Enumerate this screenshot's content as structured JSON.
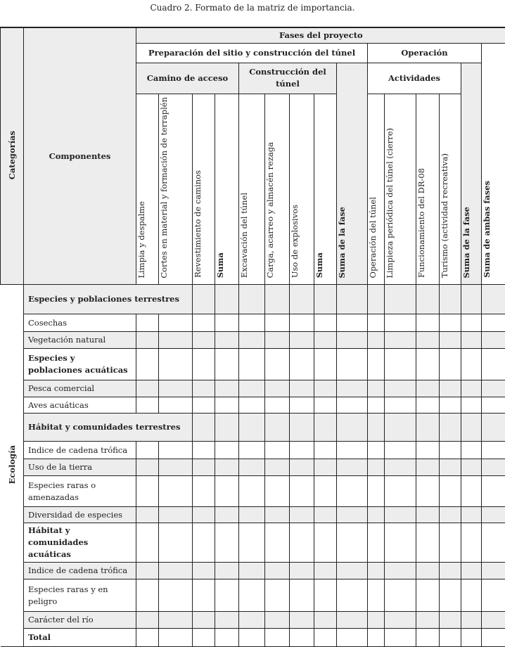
{
  "caption": "Cuadro 2. Formato de la matriz de importancia.",
  "header": {
    "categorias": "Categorías",
    "componentes": "Componentes",
    "fases": "Fases del proyecto",
    "preparacion": "Preparación del sitio y construcción del túnel",
    "operacion": "Operación",
    "camino": "Camino de acceso",
    "construccion": "Construcción del túnel",
    "actividades": "Actividades",
    "suma_fase_1": "Suma de la fase",
    "suma_fase_2": "Suma de la fase",
    "suma_ambas": "Suma de ambas fases",
    "columns": [
      {
        "label": "Limpia y despalme",
        "bold": false
      },
      {
        "label": "Cortes en material y formación de terraplén",
        "bold": false
      },
      {
        "label": "Revestimiento de caminos",
        "bold": false
      },
      {
        "label": "Suma",
        "bold": true
      },
      {
        "label": "Excavación del túnel",
        "bold": false
      },
      {
        "label": "Carga, acarreo y almacén rezaga",
        "bold": false
      },
      {
        "label": "Uso de explosivos",
        "bold": false
      },
      {
        "label": "Suma",
        "bold": true
      }
    ],
    "op_columns": [
      {
        "label": "Operación del túnel",
        "bold": false
      },
      {
        "label": "Limpieza periódica del túnel (cierre)",
        "bold": false
      },
      {
        "label": "Funcionamiento del DR-08",
        "bold": false
      },
      {
        "label": "Turismo (actividad recreativa)",
        "bold": false
      }
    ]
  },
  "category": "Ecología",
  "rows": [
    {
      "label": "Especies y poblaciones terrestres",
      "bold": true,
      "span": true
    },
    {
      "label": "Cosechas",
      "bold": false
    },
    {
      "label": "Vegetación natural",
      "bold": false
    },
    {
      "label": "Especies y poblaciones acuáticas",
      "bold": true
    },
    {
      "label": "Pesca comercial",
      "bold": false
    },
    {
      "label": "Aves acuáticas",
      "bold": false
    },
    {
      "label": "Hábitat y comunidades terrestres",
      "bold": true,
      "span": true
    },
    {
      "label": "Indice de cadena trófica",
      "bold": false
    },
    {
      "label": "Uso de la tierra",
      "bold": false
    },
    {
      "label": "Especies raras o amenazadas",
      "bold": false
    },
    {
      "label": "Diversidad de especies",
      "bold": false
    },
    {
      "label": "Hábitat y comunidades acuáticas",
      "bold": true
    },
    {
      "label": "Indice de cadena trófica",
      "bold": false
    },
    {
      "label": "Especies raras y en peligro",
      "bold": false
    },
    {
      "label": "Carácter del río",
      "bold": false
    },
    {
      "label": "Total",
      "bold": true
    }
  ],
  "colors": {
    "shade": "#ededed",
    "border": "#222222"
  }
}
